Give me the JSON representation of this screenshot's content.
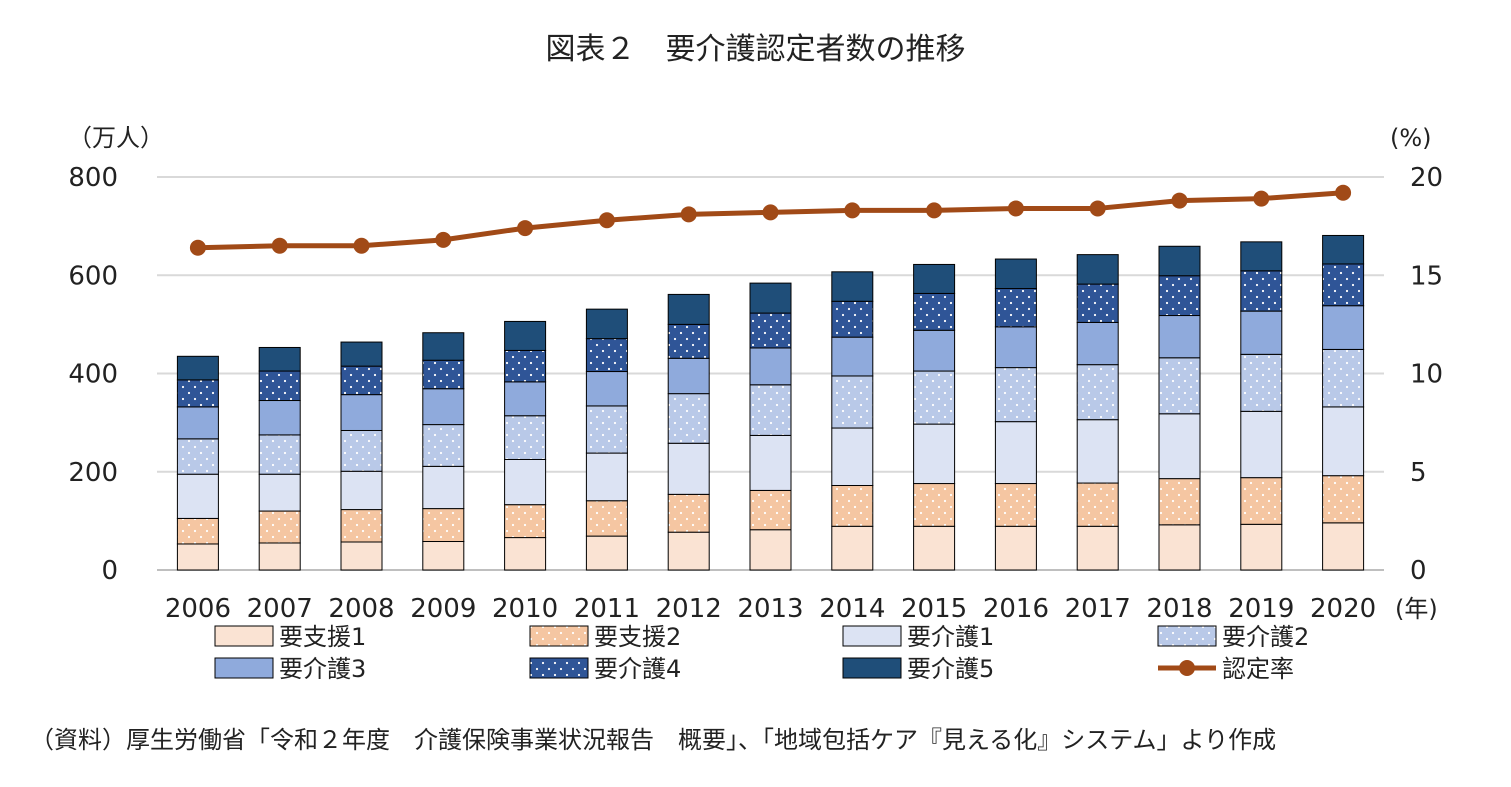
{
  "chart_data": {
    "type": "bar",
    "subtype": "stacked bar with line (secondary axis)",
    "title": "図表２　要介護認定者数の推移",
    "ylabel": "（万人）",
    "y2label": "(%)",
    "xunit": "(年)",
    "ylim": [
      0,
      800
    ],
    "yticks": [
      "800",
      "600",
      "400",
      "200",
      "0"
    ],
    "y2lim": [
      0,
      20
    ],
    "y2ticks": [
      "20",
      "15",
      "10",
      "5",
      "0"
    ],
    "grid": "horizontal",
    "legend_position": "bottom",
    "categories": [
      "2006",
      "2007",
      "2008",
      "2009",
      "2010",
      "2011",
      "2012",
      "2013",
      "2014",
      "2015",
      "2016",
      "2017",
      "2018",
      "2019",
      "2020"
    ],
    "series": [
      {
        "name": "要支援1",
        "pattern": "solid",
        "color": "#fae3d3",
        "values": [
          53,
          55,
          57,
          58,
          66,
          69,
          77,
          82,
          89,
          89,
          89,
          89,
          92,
          93,
          96
        ]
      },
      {
        "name": "要支援2",
        "pattern": "dots",
        "color": "#f5c6a2",
        "values": [
          52,
          65,
          66,
          67,
          67,
          72,
          77,
          80,
          83,
          87,
          87,
          88,
          94,
          95,
          96
        ]
      },
      {
        "name": "要介護1",
        "pattern": "solid",
        "color": "#dce3f3",
        "values": [
          90,
          75,
          78,
          86,
          92,
          97,
          104,
          112,
          117,
          121,
          126,
          129,
          132,
          135,
          140
        ]
      },
      {
        "name": "要介護2",
        "pattern": "dots",
        "color": "#b9c9e8",
        "values": [
          72,
          80,
          83,
          85,
          89,
          96,
          101,
          103,
          106,
          108,
          110,
          112,
          114,
          116,
          117
        ]
      },
      {
        "name": "要介護3",
        "pattern": "solid",
        "color": "#8faadc",
        "values": [
          65,
          70,
          73,
          73,
          69,
          70,
          72,
          75,
          79,
          83,
          83,
          86,
          86,
          88,
          89
        ]
      },
      {
        "name": "要介護4",
        "pattern": "dots",
        "color": "#2f5597",
        "values": [
          55,
          60,
          58,
          58,
          64,
          67,
          69,
          71,
          73,
          75,
          78,
          78,
          81,
          82,
          85
        ]
      },
      {
        "name": "要介護5",
        "pattern": "solid",
        "color": "#1f4e79",
        "values": [
          48,
          48,
          49,
          56,
          59,
          60,
          61,
          61,
          60,
          59,
          60,
          60,
          60,
          59,
          58
        ]
      }
    ],
    "line_series": {
      "name": "認定率",
      "axis": "secondary",
      "color": "#a14a17",
      "values": [
        16.4,
        16.5,
        16.5,
        16.8,
        17.4,
        17.8,
        18.1,
        18.2,
        18.3,
        18.3,
        18.4,
        18.4,
        18.8,
        18.9,
        19.2
      ]
    }
  },
  "source_note": "（資料）厚生労働省「令和２年度　介護保険事業状況報告　概要」、「地域包括ケア『見える化』システム」より作成"
}
